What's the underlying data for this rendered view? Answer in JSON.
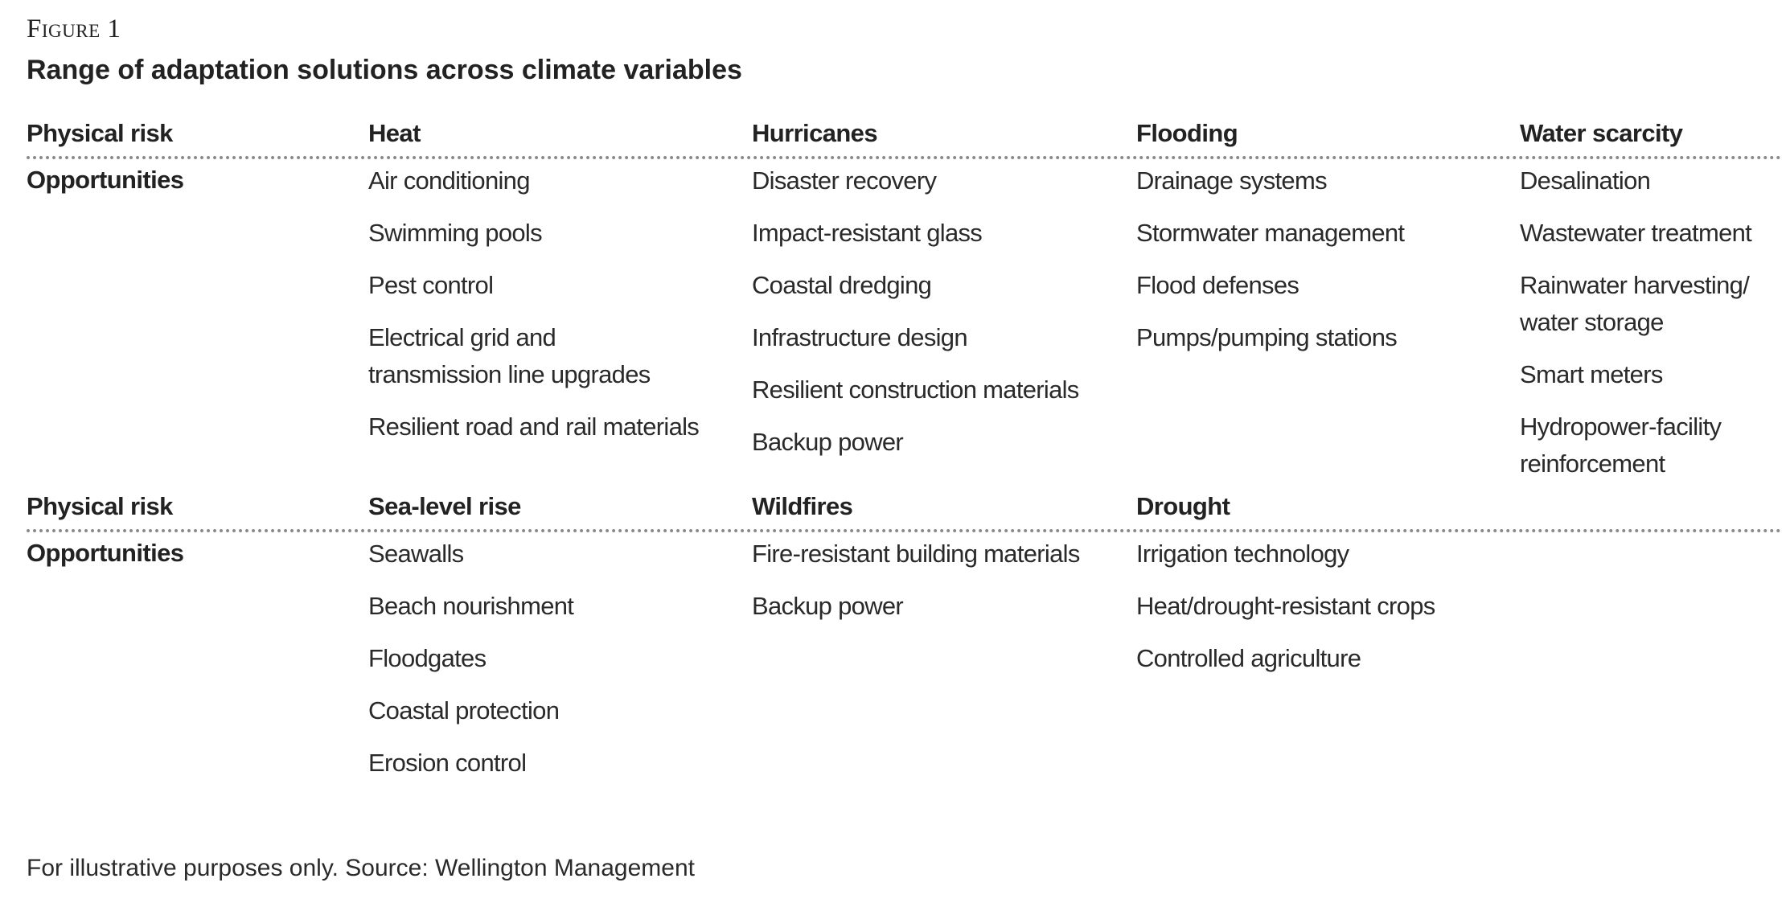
{
  "figure": {
    "label": "Figure 1",
    "title": "Range of adaptation solutions across climate variables"
  },
  "blocks": [
    {
      "risk_label": "Physical risk",
      "opportunities_label": "Opportunities",
      "columns": [
        {
          "risk": "Heat",
          "opportunities": [
            "Air conditioning",
            "Swimming pools",
            "Pest control",
            "Electrical grid and\ntransmission line upgrades",
            "Resilient road and rail materials"
          ]
        },
        {
          "risk": "Hurricanes",
          "opportunities": [
            "Disaster recovery",
            "Impact-resistant glass",
            "Coastal dredging",
            "Infrastructure design",
            "Resilient construction materials",
            "Backup power"
          ]
        },
        {
          "risk": "Flooding",
          "opportunities": [
            "Drainage systems",
            "Stormwater management",
            "Flood defenses",
            "Pumps/pumping stations"
          ]
        },
        {
          "risk": "Water scarcity",
          "opportunities": [
            "Desalination",
            "Wastewater treatment",
            "Rainwater harvesting/\nwater storage",
            "Smart meters",
            "Hydropower-facility\nreinforcement"
          ]
        }
      ]
    },
    {
      "risk_label": "Physical risk",
      "opportunities_label": "Opportunities",
      "columns": [
        {
          "risk": "Sea-level rise",
          "opportunities": [
            "Seawalls",
            "Beach nourishment",
            "Floodgates",
            "Coastal protection",
            "Erosion control"
          ]
        },
        {
          "risk": "Wildfires",
          "opportunities": [
            "Fire-resistant building materials",
            "Backup power"
          ]
        },
        {
          "risk": "Drought",
          "opportunities": [
            "Irrigation technology",
            "Heat/drought-resistant crops",
            "Controlled agriculture"
          ]
        }
      ]
    }
  ],
  "footnote": "For illustrative purposes only. Source: Wellington Management"
}
